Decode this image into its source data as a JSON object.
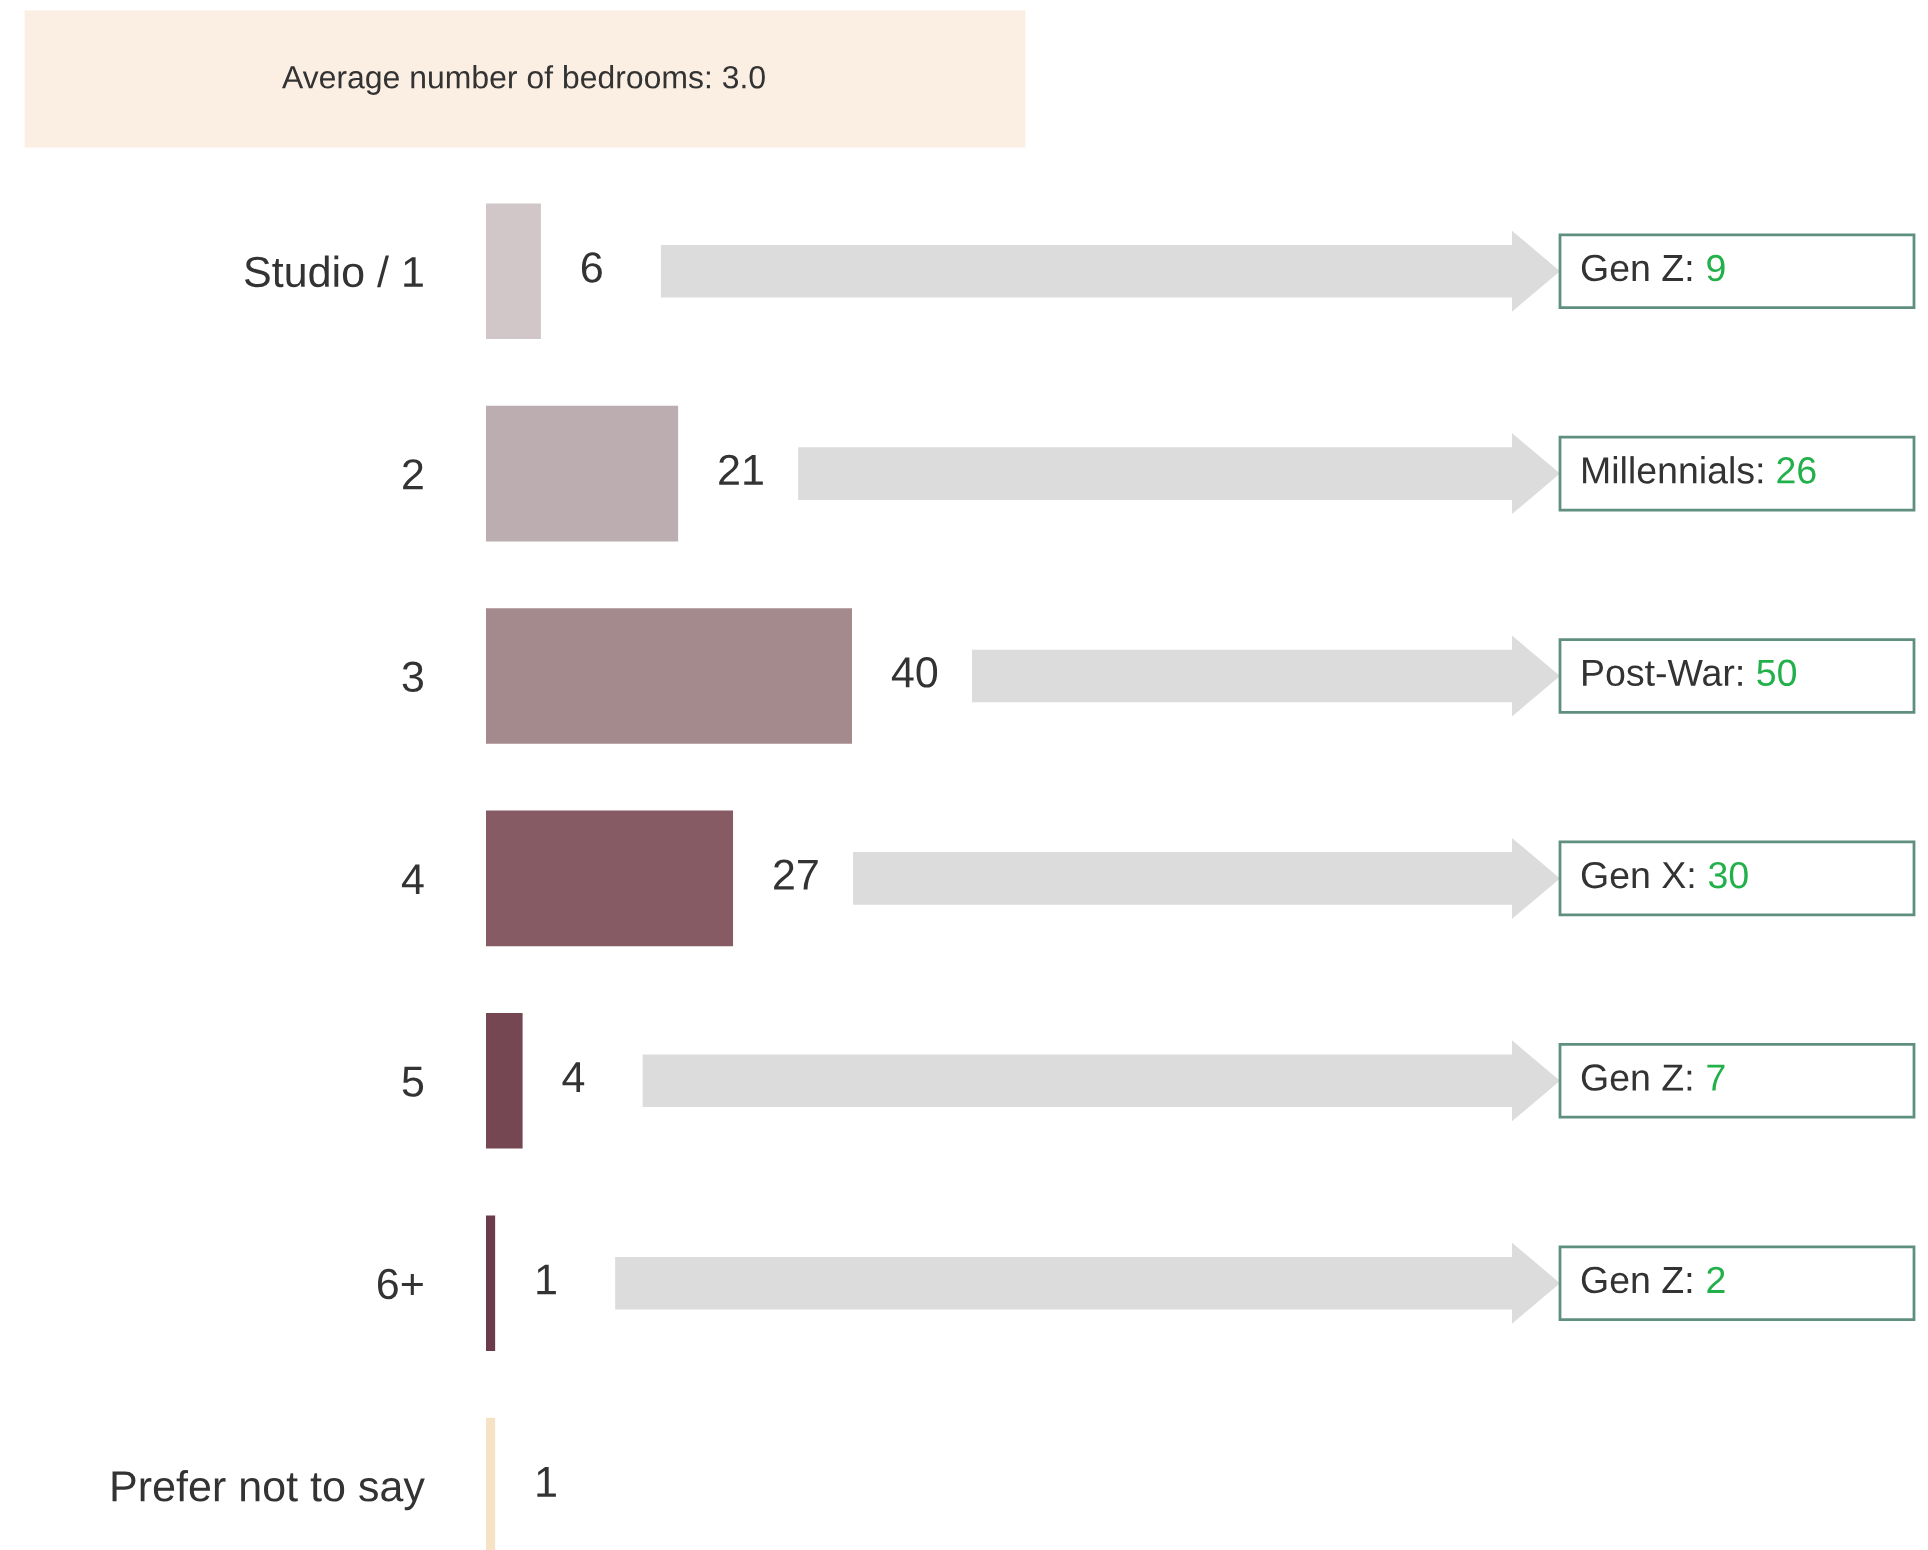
{
  "chart_data": {
    "type": "bar",
    "orientation": "horizontal",
    "categories": [
      "Studio / 1",
      "2",
      "3",
      "4",
      "5",
      "6+",
      "Prefer not to say"
    ],
    "values": [
      6,
      21,
      40,
      27,
      4,
      1,
      1
    ],
    "colors": [
      "#d1c6c8",
      "#bcadb0",
      "#a48a8d",
      "#875b64",
      "#744753",
      "#6b3a4b",
      "#f6e3c6"
    ],
    "data_labels": true,
    "annotations": [
      "Average number of bedrooms: 3.0",
      "Gen Z: 9",
      "Millennials: 26",
      "Post-War: 50",
      "Gen X: 30",
      "Gen Z: 7",
      "Gen Z: 2"
    ]
  }
}
